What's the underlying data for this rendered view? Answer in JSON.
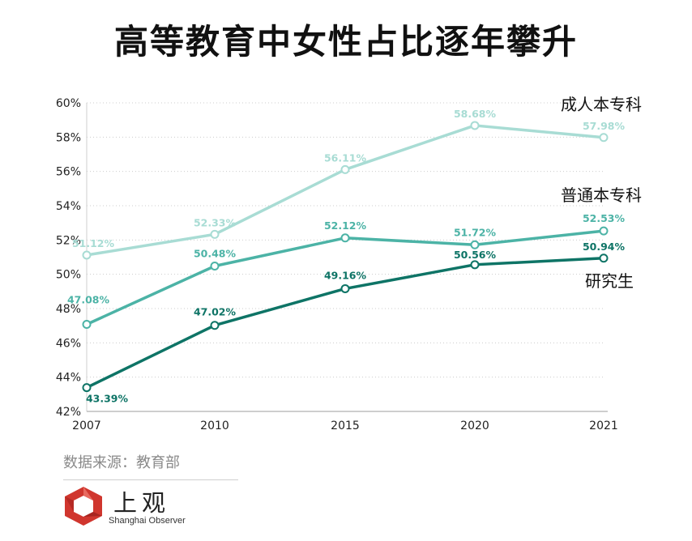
{
  "title": "高等教育中女性占比逐年攀升",
  "source": "数据来源：教育部",
  "brand": {
    "name": "上观",
    "subtitle": "Shanghai Observer"
  },
  "chart_data": {
    "type": "line",
    "x": [
      "2007",
      "2010",
      "2015",
      "2020",
      "2021"
    ],
    "ylim": [
      42,
      60
    ],
    "yticks": [
      "42%",
      "44%",
      "46%",
      "48%",
      "50%",
      "52%",
      "54%",
      "56%",
      "58%",
      "60%"
    ],
    "grid": true,
    "series": [
      {
        "name": "成人本专科",
        "color": "#a8dcd4",
        "values": [
          51.12,
          52.33,
          56.11,
          58.68,
          57.98
        ],
        "labels": [
          "51.12%",
          "52.33%",
          "56.11%",
          "58.68%",
          "57.98%"
        ]
      },
      {
        "name": "普通本专科",
        "color": "#4cb3a6",
        "values": [
          47.08,
          50.48,
          52.12,
          51.72,
          52.53
        ],
        "labels": [
          "47.08%",
          "50.48%",
          "52.12%",
          "51.72%",
          "52.53%"
        ]
      },
      {
        "name": "研究生",
        "color": "#0e7466",
        "values": [
          43.39,
          47.02,
          49.16,
          50.56,
          50.94
        ],
        "labels": [
          "43.39%",
          "47.02%",
          "49.16%",
          "50.56%",
          "50.94%"
        ]
      }
    ]
  }
}
